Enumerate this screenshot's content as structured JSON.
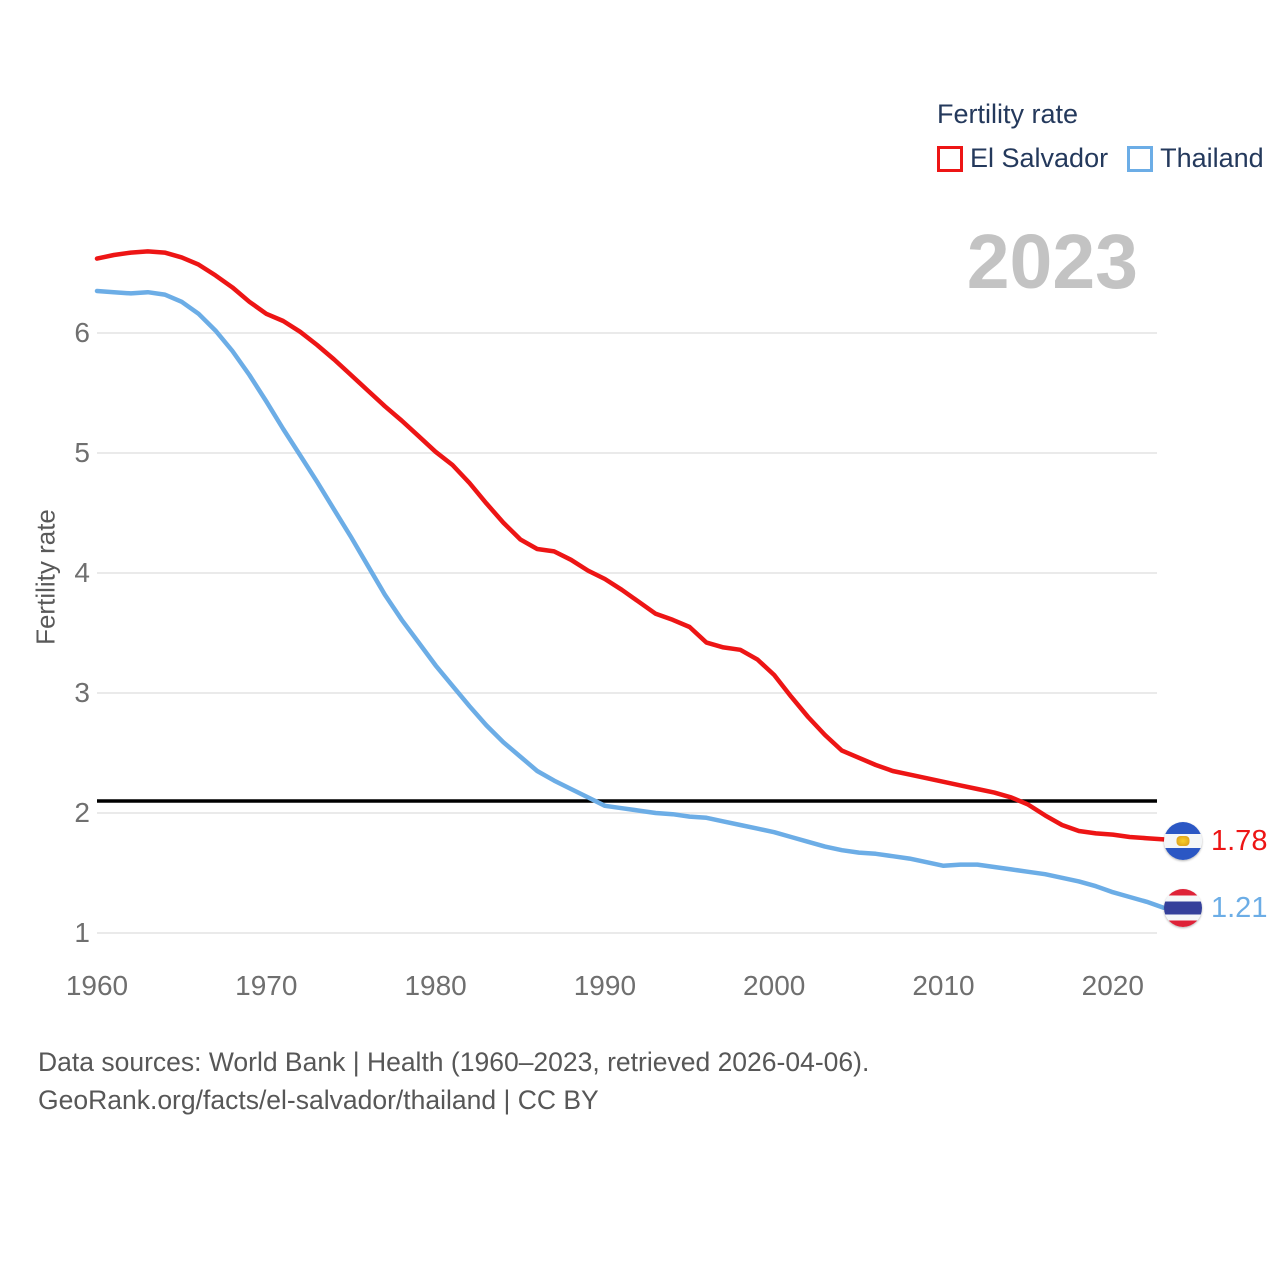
{
  "legend": {
    "title": "Fertility rate",
    "items": [
      {
        "label": "El Salvador",
        "color": "#ed1515"
      },
      {
        "label": "Thailand",
        "color": "#6cade6"
      }
    ]
  },
  "watermark": "2023",
  "y_axis": {
    "title": "Fertility rate"
  },
  "end_labels": {
    "el_salvador": {
      "value": "1.78",
      "flag": "el-salvador-flag"
    },
    "thailand": {
      "value": "1.21",
      "flag": "thailand-flag"
    }
  },
  "footer": {
    "line1": "Data sources: World Bank | Health (1960–2023, retrieved 2026-04-06).",
    "line2": "GeoRank.org/facts/el-salvador/thailand | CC BY"
  },
  "colors": {
    "el_salvador_line": "#ed1515",
    "thailand_line": "#6cade6",
    "reference_line": "#000000",
    "gridline": "#eaeaea",
    "axis_text": "#6f6f6f",
    "legend_text": "#24395c",
    "watermark_gray": "#c3c3c3",
    "footer_text": "#575757"
  },
  "chart_data": {
    "type": "line",
    "title": "Fertility rate",
    "xlabel": "",
    "ylabel": "Fertility rate",
    "grid": "horizontal",
    "legend_position": "top-right",
    "xlim": [
      1960,
      2023
    ],
    "ylim": [
      0.8,
      6.9
    ],
    "xticks": [
      1960,
      1970,
      1980,
      1990,
      2000,
      2010,
      2020
    ],
    "yticks": [
      1,
      2,
      3,
      4,
      5,
      6
    ],
    "reference_line": 2.1,
    "x": [
      1960,
      1961,
      1962,
      1963,
      1964,
      1965,
      1966,
      1967,
      1968,
      1969,
      1970,
      1971,
      1972,
      1973,
      1974,
      1975,
      1976,
      1977,
      1978,
      1979,
      1980,
      1981,
      1982,
      1983,
      1984,
      1985,
      1986,
      1987,
      1988,
      1989,
      1990,
      1991,
      1992,
      1993,
      1994,
      1995,
      1996,
      1997,
      1998,
      1999,
      2000,
      2001,
      2002,
      2003,
      2004,
      2005,
      2006,
      2007,
      2008,
      2009,
      2010,
      2011,
      2012,
      2013,
      2014,
      2015,
      2016,
      2017,
      2018,
      2019,
      2020,
      2021,
      2022,
      2023
    ],
    "series": [
      {
        "name": "El Salvador",
        "color": "#ed1515",
        "end_value": 1.78,
        "values": [
          6.62,
          6.65,
          6.67,
          6.68,
          6.67,
          6.63,
          6.57,
          6.48,
          6.38,
          6.26,
          6.16,
          6.1,
          6.01,
          5.9,
          5.78,
          5.65,
          5.52,
          5.39,
          5.27,
          5.14,
          5.01,
          4.9,
          4.75,
          4.58,
          4.42,
          4.28,
          4.2,
          4.18,
          4.11,
          4.02,
          3.95,
          3.86,
          3.76,
          3.66,
          3.61,
          3.55,
          3.42,
          3.38,
          3.36,
          3.28,
          3.15,
          2.97,
          2.8,
          2.65,
          2.52,
          2.46,
          2.4,
          2.35,
          2.32,
          2.29,
          2.26,
          2.23,
          2.2,
          2.17,
          2.13,
          2.07,
          1.98,
          1.9,
          1.85,
          1.83,
          1.82,
          1.8,
          1.79,
          1.78
        ]
      },
      {
        "name": "Thailand",
        "color": "#6cade6",
        "end_value": 1.21,
        "values": [
          6.35,
          6.34,
          6.33,
          6.34,
          6.32,
          6.26,
          6.16,
          6.02,
          5.85,
          5.65,
          5.43,
          5.2,
          4.98,
          4.76,
          4.53,
          4.3,
          4.06,
          3.82,
          3.61,
          3.42,
          3.23,
          3.06,
          2.89,
          2.73,
          2.59,
          2.47,
          2.35,
          2.27,
          2.2,
          2.13,
          2.06,
          2.04,
          2.02,
          2.0,
          1.99,
          1.97,
          1.96,
          1.93,
          1.9,
          1.87,
          1.84,
          1.8,
          1.76,
          1.72,
          1.69,
          1.67,
          1.66,
          1.64,
          1.62,
          1.59,
          1.56,
          1.57,
          1.57,
          1.55,
          1.53,
          1.51,
          1.49,
          1.46,
          1.43,
          1.39,
          1.34,
          1.3,
          1.26,
          1.21
        ]
      }
    ]
  }
}
